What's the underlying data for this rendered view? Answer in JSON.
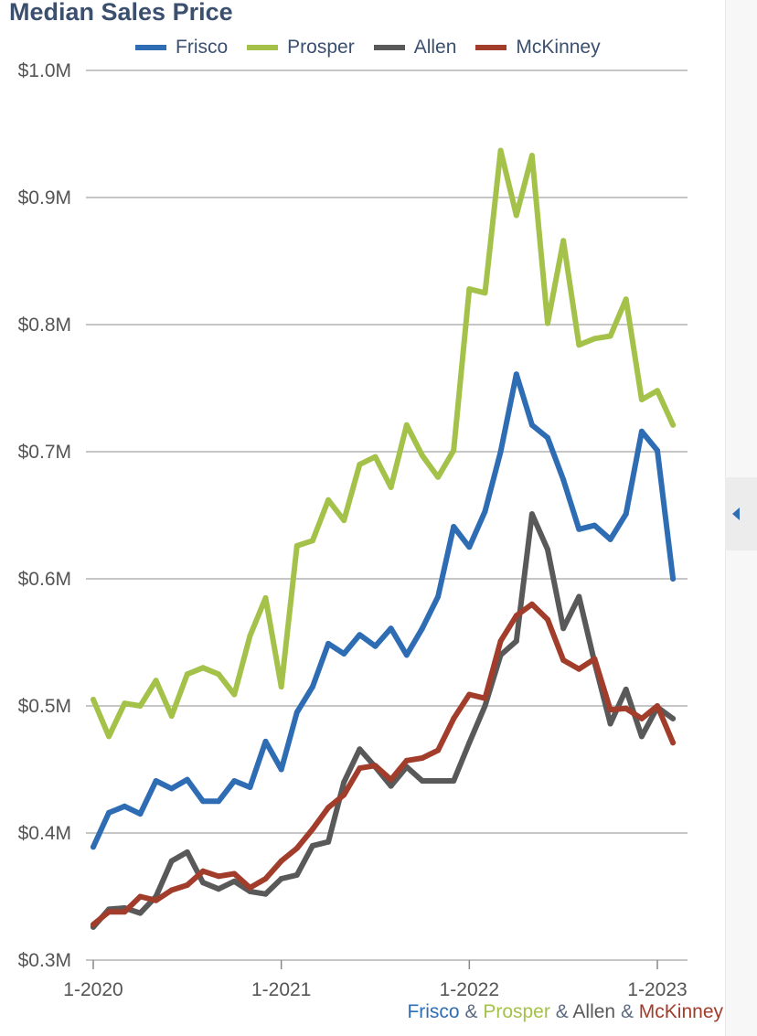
{
  "chart_data": {
    "type": "line",
    "title": "Median Sales Price",
    "ylim": [
      300000,
      1000000
    ],
    "yticks": [
      300000,
      400000,
      500000,
      600000,
      700000,
      800000,
      900000,
      1000000
    ],
    "ytick_labels": [
      "$0.3M",
      "$0.4M",
      "$0.5M",
      "$0.6M",
      "$0.7M",
      "$0.8M",
      "$0.9M",
      "$1.0M"
    ],
    "xticks": [
      "2020-01",
      "2021-01",
      "2022-01",
      "2023-01"
    ],
    "xtick_labels": [
      "1-2020",
      "1-2021",
      "1-2022",
      "1-2023"
    ],
    "grid": true,
    "legend_position": "top",
    "x": [
      "2020-01",
      "2020-02",
      "2020-03",
      "2020-04",
      "2020-05",
      "2020-06",
      "2020-07",
      "2020-08",
      "2020-09",
      "2020-10",
      "2020-11",
      "2020-12",
      "2021-01",
      "2021-02",
      "2021-03",
      "2021-04",
      "2021-05",
      "2021-06",
      "2021-07",
      "2021-08",
      "2021-09",
      "2021-10",
      "2021-11",
      "2021-12",
      "2022-01",
      "2022-02",
      "2022-03",
      "2022-04",
      "2022-05",
      "2022-06",
      "2022-07",
      "2022-08",
      "2022-09",
      "2022-10",
      "2022-11",
      "2022-12",
      "2023-01",
      "2023-02"
    ],
    "series": [
      {
        "name": "Frisco",
        "color": "#2e6db4",
        "values": [
          389000,
          416000,
          421000,
          415000,
          441000,
          435000,
          442000,
          425000,
          425000,
          441000,
          436000,
          472000,
          450000,
          495000,
          515000,
          549000,
          541000,
          556000,
          547000,
          561000,
          540000,
          561000,
          586000,
          641000,
          625000,
          653000,
          700000,
          761000,
          721000,
          711000,
          678000,
          639000,
          642000,
          631000,
          651000,
          716000,
          701000,
          600000
        ]
      },
      {
        "name": "Prosper",
        "color": "#a4c24a",
        "values": [
          505000,
          476000,
          502000,
          500000,
          520000,
          492000,
          525000,
          530000,
          525000,
          509000,
          555000,
          585000,
          515000,
          626000,
          630000,
          662000,
          646000,
          690000,
          696000,
          672000,
          721000,
          697000,
          680000,
          701000,
          828000,
          825000,
          937000,
          886000,
          933000,
          801000,
          866000,
          784000,
          789000,
          791000,
          820000,
          741000,
          748000,
          721000
        ]
      },
      {
        "name": "Allen",
        "color": "#595959",
        "values": [
          326000,
          340000,
          341000,
          337000,
          350000,
          378000,
          385000,
          361000,
          356000,
          362000,
          354000,
          352000,
          364000,
          367000,
          390000,
          393000,
          440000,
          466000,
          452000,
          437000,
          452000,
          441000,
          441000,
          441000,
          471000,
          500000,
          540000,
          551000,
          651000,
          623000,
          561000,
          586000,
          534000,
          486000,
          513000,
          476000,
          499000,
          490000
        ]
      },
      {
        "name": "McKinney",
        "color": "#a23d2b",
        "values": [
          328000,
          338000,
          338000,
          350000,
          347000,
          355000,
          359000,
          370000,
          366000,
          368000,
          357000,
          364000,
          378000,
          388000,
          403000,
          420000,
          430000,
          451000,
          453000,
          442000,
          457000,
          459000,
          465000,
          490000,
          509000,
          506000,
          551000,
          571000,
          580000,
          568000,
          536000,
          529000,
          537000,
          497000,
          498000,
          490000,
          500000,
          471000
        ]
      }
    ]
  },
  "footer": {
    "series_1": "Frisco",
    "series_2": "Prosper",
    "series_3": "Allen",
    "series_4": "McKinney",
    "separator": "&"
  }
}
